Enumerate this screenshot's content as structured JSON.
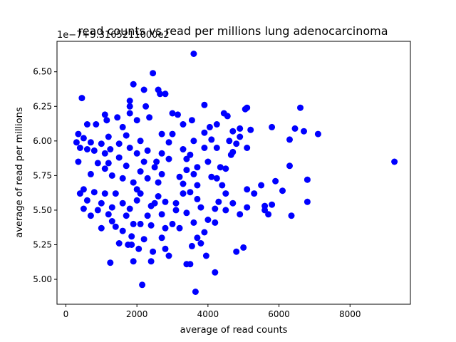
{
  "chart_data": {
    "type": "scatter",
    "title": "read counts vs read per millions lung adenocarcinoma",
    "xlabel": "average of read counts",
    "ylabel": "average of read per millions",
    "offset_label": "1e−7+5.3165211000e2",
    "xlim": [
      -250,
      9700
    ],
    "ylim": [
      4.82,
      6.72
    ],
    "xticks": [
      0,
      2000,
      4000,
      6000,
      8000
    ],
    "xtick_labels": [
      "0",
      "2000",
      "4000",
      "6000",
      "8000"
    ],
    "yticks": [
      5.0,
      5.25,
      5.5,
      5.75,
      6.0,
      6.25,
      6.5
    ],
    "ytick_labels": [
      "5.00",
      "5.25",
      "5.50",
      "5.75",
      "6.00",
      "6.25",
      "6.50"
    ],
    "grid": false,
    "marker_color": "#0000ff",
    "points": [
      [
        3600,
        6.63
      ],
      [
        2450,
        6.49
      ],
      [
        1900,
        6.41
      ],
      [
        2200,
        6.37
      ],
      [
        2600,
        6.37
      ],
      [
        2800,
        6.34
      ],
      [
        450,
        6.31
      ],
      [
        2650,
        6.34
      ],
      [
        1800,
        6.29
      ],
      [
        1800,
        6.25
      ],
      [
        2250,
        6.25
      ],
      [
        3900,
        6.26
      ],
      [
        5100,
        6.24
      ],
      [
        5050,
        6.23
      ],
      [
        6600,
        6.24
      ],
      [
        1800,
        6.2
      ],
      [
        3000,
        6.2
      ],
      [
        3150,
        6.19
      ],
      [
        1100,
        6.19
      ],
      [
        1450,
        6.17
      ],
      [
        2350,
        6.17
      ],
      [
        4450,
        6.2
      ],
      [
        4550,
        6.18
      ],
      [
        1150,
        6.15
      ],
      [
        3550,
        6.15
      ],
      [
        600,
        6.12
      ],
      [
        850,
        6.12
      ],
      [
        2000,
        6.15
      ],
      [
        3300,
        6.12
      ],
      [
        4050,
        6.1
      ],
      [
        4250,
        6.12
      ],
      [
        5800,
        6.1
      ],
      [
        4900,
        6.09
      ],
      [
        5200,
        6.08
      ],
      [
        6450,
        6.09
      ],
      [
        6700,
        6.07
      ],
      [
        7100,
        6.05
      ],
      [
        350,
        6.05
      ],
      [
        500,
        6.02
      ],
      [
        1200,
        6.03
      ],
      [
        1700,
        6.04
      ],
      [
        2700,
        6.05
      ],
      [
        3900,
        6.06
      ],
      [
        4700,
        6.07
      ],
      [
        4900,
        6.03
      ],
      [
        300,
        5.99
      ],
      [
        700,
        5.99
      ],
      [
        1000,
        5.98
      ],
      [
        1500,
        5.98
      ],
      [
        2100,
        6.0
      ],
      [
        2900,
        5.99
      ],
      [
        3600,
        6.0
      ],
      [
        4100,
        6.01
      ],
      [
        4600,
        6.0
      ],
      [
        4800,
        5.98
      ],
      [
        6300,
        6.01
      ],
      [
        400,
        5.95
      ],
      [
        600,
        5.94
      ],
      [
        800,
        5.93
      ],
      [
        1250,
        5.94
      ],
      [
        1800,
        5.95
      ],
      [
        2300,
        5.93
      ],
      [
        3300,
        5.94
      ],
      [
        3900,
        5.95
      ],
      [
        4250,
        5.95
      ],
      [
        5100,
        5.95
      ],
      [
        4700,
        5.92
      ],
      [
        1100,
        5.91
      ],
      [
        2000,
        5.91
      ],
      [
        2700,
        5.91
      ],
      [
        3500,
        5.9
      ],
      [
        4650,
        5.9
      ],
      [
        1500,
        5.88
      ],
      [
        3400,
        5.87
      ],
      [
        2900,
        5.87
      ],
      [
        350,
        5.85
      ],
      [
        900,
        5.84
      ],
      [
        1200,
        5.84
      ],
      [
        2200,
        5.85
      ],
      [
        4000,
        5.85
      ],
      [
        9250,
        5.85
      ],
      [
        1700,
        5.82
      ],
      [
        2500,
        5.81
      ],
      [
        3700,
        5.81
      ],
      [
        4350,
        5.81
      ],
      [
        6300,
        5.82
      ],
      [
        1100,
        5.8
      ],
      [
        2100,
        5.78
      ],
      [
        3400,
        5.79
      ],
      [
        4500,
        5.8
      ],
      [
        700,
        5.76
      ],
      [
        1300,
        5.75
      ],
      [
        2700,
        5.76
      ],
      [
        3600,
        5.76
      ],
      [
        4100,
        5.74
      ],
      [
        2300,
        5.73
      ],
      [
        3200,
        5.74
      ],
      [
        4250,
        5.73
      ],
      [
        6800,
        5.72
      ],
      [
        1600,
        5.73
      ],
      [
        5900,
        5.71
      ],
      [
        1900,
        5.7
      ],
      [
        2600,
        5.7
      ],
      [
        3300,
        5.69
      ],
      [
        3700,
        5.68
      ],
      [
        4400,
        5.68
      ],
      [
        5100,
        5.65
      ],
      [
        5500,
        5.68
      ],
      [
        400,
        5.62
      ],
      [
        500,
        5.65
      ],
      [
        800,
        5.63
      ],
      [
        1100,
        5.62
      ],
      [
        1400,
        5.62
      ],
      [
        2100,
        5.62
      ],
      [
        2600,
        5.6
      ],
      [
        3500,
        5.63
      ],
      [
        4500,
        5.62
      ],
      [
        5300,
        5.62
      ],
      [
        6100,
        5.64
      ],
      [
        600,
        5.57
      ],
      [
        1000,
        5.55
      ],
      [
        1600,
        5.55
      ],
      [
        2000,
        5.57
      ],
      [
        2800,
        5.56
      ],
      [
        3700,
        5.58
      ],
      [
        4300,
        5.56
      ],
      [
        4700,
        5.55
      ],
      [
        5600,
        5.53
      ],
      [
        5800,
        5.54
      ],
      [
        6800,
        5.56
      ],
      [
        500,
        5.51
      ],
      [
        900,
        5.5
      ],
      [
        1300,
        5.52
      ],
      [
        1800,
        5.51
      ],
      [
        2400,
        5.53
      ],
      [
        3100,
        5.5
      ],
      [
        3800,
        5.52
      ],
      [
        4200,
        5.51
      ],
      [
        4500,
        5.5
      ],
      [
        5100,
        5.52
      ],
      [
        5600,
        5.5
      ],
      [
        700,
        5.46
      ],
      [
        1200,
        5.47
      ],
      [
        1700,
        5.46
      ],
      [
        2300,
        5.46
      ],
      [
        2700,
        5.47
      ],
      [
        3400,
        5.48
      ],
      [
        4900,
        5.47
      ],
      [
        5700,
        5.47
      ],
      [
        6350,
        5.46
      ],
      [
        1300,
        5.42
      ],
      [
        1900,
        5.4
      ],
      [
        2400,
        5.39
      ],
      [
        3000,
        5.4
      ],
      [
        3600,
        5.41
      ],
      [
        4000,
        5.43
      ],
      [
        4200,
        5.41
      ],
      [
        1000,
        5.37
      ],
      [
        1400,
        5.38
      ],
      [
        2800,
        5.37
      ],
      [
        3200,
        5.37
      ],
      [
        3900,
        5.34
      ],
      [
        1600,
        5.35
      ],
      [
        1850,
        5.31
      ],
      [
        2200,
        5.29
      ],
      [
        2700,
        5.3
      ],
      [
        3700,
        5.3
      ],
      [
        1500,
        5.26
      ],
      [
        1750,
        5.25
      ],
      [
        1850,
        5.25
      ],
      [
        3550,
        5.24
      ],
      [
        3800,
        5.26
      ],
      [
        5000,
        5.23
      ],
      [
        2050,
        5.22
      ],
      [
        2450,
        5.2
      ],
      [
        2800,
        5.22
      ],
      [
        4800,
        5.2
      ],
      [
        2900,
        5.17
      ],
      [
        3950,
        5.17
      ],
      [
        1250,
        5.12
      ],
      [
        1900,
        5.13
      ],
      [
        2400,
        5.13
      ],
      [
        3400,
        5.11
      ],
      [
        4200,
        5.05
      ],
      [
        2150,
        4.96
      ],
      [
        3650,
        4.91
      ],
      [
        3500,
        5.11
      ],
      [
        2500,
        5.55
      ],
      [
        3100,
        5.55
      ],
      [
        1600,
        6.1
      ],
      [
        2000,
        5.65
      ],
      [
        3000,
        6.05
      ],
      [
        2100,
        5.4
      ],
      [
        3300,
        5.62
      ],
      [
        2550,
        5.85
      ]
    ]
  }
}
